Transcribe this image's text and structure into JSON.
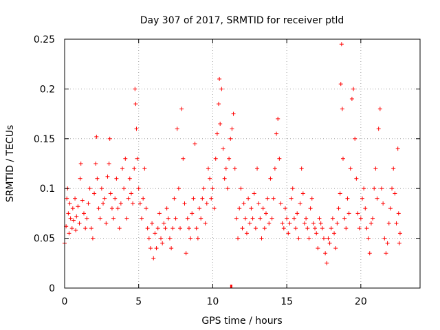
{
  "chart_data": {
    "type": "scatter",
    "title": "Day 307 of 2017, SRMTID for receiver ptld",
    "xlabel": "GPS time / hours",
    "ylabel": "SRMTID / TECUs",
    "xlim": [
      0,
      24
    ],
    "ylim": [
      0,
      0.25
    ],
    "xticks": [
      0,
      5,
      10,
      15,
      20
    ],
    "xtick_labels": [
      "0",
      "5",
      "10",
      "15",
      "20"
    ],
    "yticks": [
      0,
      0.05,
      0.1,
      0.15,
      0.2,
      0.25
    ],
    "ytick_labels": [
      "0",
      "0.05",
      "0.1",
      "0.15",
      "0.2",
      "0.25"
    ],
    "grid": true,
    "marker": "+",
    "color": "#ff0000",
    "series": [
      {
        "name": "SRMTID",
        "points": [
          [
            0.0,
            0.045
          ],
          [
            0.1,
            0.062
          ],
          [
            0.15,
            0.09
          ],
          [
            0.2,
            0.1
          ],
          [
            0.25,
            0.075
          ],
          [
            0.3,
            0.055
          ],
          [
            0.35,
            0.085
          ],
          [
            0.4,
            0.07
          ],
          [
            0.5,
            0.06
          ],
          [
            0.55,
            0.08
          ],
          [
            0.6,
            0.068
          ],
          [
            0.7,
            0.09
          ],
          [
            0.75,
            0.058
          ],
          [
            0.8,
            0.072
          ],
          [
            0.9,
            0.082
          ],
          [
            1.0,
            0.065
          ],
          [
            1.05,
            0.11
          ],
          [
            1.1,
            0.125
          ],
          [
            1.2,
            0.088
          ],
          [
            1.3,
            0.075
          ],
          [
            1.4,
            0.06
          ],
          [
            1.5,
            0.07
          ],
          [
            1.6,
            0.085
          ],
          [
            1.7,
            0.1
          ],
          [
            1.8,
            0.06
          ],
          [
            1.9,
            0.05
          ],
          [
            2.0,
            0.095
          ],
          [
            2.1,
            0.125
          ],
          [
            2.15,
            0.152
          ],
          [
            2.2,
            0.11
          ],
          [
            2.3,
            0.08
          ],
          [
            2.4,
            0.07
          ],
          [
            2.5,
            0.1
          ],
          [
            2.6,
            0.085
          ],
          [
            2.7,
            0.09
          ],
          [
            2.8,
            0.065
          ],
          [
            2.9,
            0.112
          ],
          [
            3.0,
            0.125
          ],
          [
            3.05,
            0.15
          ],
          [
            3.1,
            0.095
          ],
          [
            3.2,
            0.08
          ],
          [
            3.3,
            0.07
          ],
          [
            3.4,
            0.09
          ],
          [
            3.5,
            0.11
          ],
          [
            3.6,
            0.08
          ],
          [
            3.7,
            0.06
          ],
          [
            3.8,
            0.085
          ],
          [
            3.9,
            0.12
          ],
          [
            4.0,
            0.1
          ],
          [
            4.1,
            0.13
          ],
          [
            4.2,
            0.07
          ],
          [
            4.3,
            0.09
          ],
          [
            4.4,
            0.11
          ],
          [
            4.5,
            0.095
          ],
          [
            4.6,
            0.085
          ],
          [
            4.7,
            0.12
          ],
          [
            4.75,
            0.2
          ],
          [
            4.8,
            0.185
          ],
          [
            4.85,
            0.16
          ],
          [
            4.9,
            0.13
          ],
          [
            5.0,
            0.1
          ],
          [
            5.1,
            0.085
          ],
          [
            5.2,
            0.07
          ],
          [
            5.3,
            0.09
          ],
          [
            5.4,
            0.12
          ],
          [
            5.5,
            0.08
          ],
          [
            5.6,
            0.06
          ],
          [
            5.7,
            0.05
          ],
          [
            5.8,
            0.04
          ],
          [
            5.9,
            0.065
          ],
          [
            6.0,
            0.03
          ],
          [
            6.1,
            0.055
          ],
          [
            6.2,
            0.04
          ],
          [
            6.3,
            0.06
          ],
          [
            6.4,
            0.075
          ],
          [
            6.5,
            0.05
          ],
          [
            6.6,
            0.045
          ],
          [
            6.7,
            0.065
          ],
          [
            6.8,
            0.06
          ],
          [
            6.9,
            0.08
          ],
          [
            7.0,
            0.07
          ],
          [
            7.1,
            0.05
          ],
          [
            7.2,
            0.04
          ],
          [
            7.3,
            0.06
          ],
          [
            7.4,
            0.09
          ],
          [
            7.5,
            0.07
          ],
          [
            7.6,
            0.16
          ],
          [
            7.7,
            0.1
          ],
          [
            7.8,
            0.06
          ],
          [
            7.9,
            0.18
          ],
          [
            8.0,
            0.13
          ],
          [
            8.1,
            0.085
          ],
          [
            8.2,
            0.035
          ],
          [
            8.3,
            0.07
          ],
          [
            8.4,
            0.06
          ],
          [
            8.5,
            0.05
          ],
          [
            8.6,
            0.075
          ],
          [
            8.7,
            0.09
          ],
          [
            8.8,
            0.145
          ],
          [
            8.9,
            0.06
          ],
          [
            9.0,
            0.05
          ],
          [
            9.1,
            0.08
          ],
          [
            9.2,
            0.07
          ],
          [
            9.3,
            0.09
          ],
          [
            9.4,
            0.1
          ],
          [
            9.5,
            0.065
          ],
          [
            9.6,
            0.085
          ],
          [
            9.7,
            0.12
          ],
          [
            9.8,
            0.11
          ],
          [
            9.9,
            0.09
          ],
          [
            10.0,
            0.1
          ],
          [
            10.1,
            0.08
          ],
          [
            10.2,
            0.13
          ],
          [
            10.3,
            0.155
          ],
          [
            10.4,
            0.185
          ],
          [
            10.45,
            0.21
          ],
          [
            10.5,
            0.165
          ],
          [
            10.6,
            0.2
          ],
          [
            10.7,
            0.14
          ],
          [
            10.8,
            0.11
          ],
          [
            10.9,
            0.12
          ],
          [
            11.0,
            0.1
          ],
          [
            11.1,
            0.13
          ],
          [
            11.2,
            0.15
          ],
          [
            11.3,
            0.16
          ],
          [
            11.4,
            0.175
          ],
          [
            11.5,
            0.12
          ],
          [
            11.6,
            0.07
          ],
          [
            11.7,
            0.05
          ],
          [
            11.8,
            0.08
          ],
          [
            11.9,
            0.1
          ],
          [
            12.0,
            0.06
          ],
          [
            12.1,
            0.085
          ],
          [
            12.2,
            0.07
          ],
          [
            12.3,
            0.055
          ],
          [
            12.4,
            0.09
          ],
          [
            12.5,
            0.065
          ],
          [
            12.6,
            0.08
          ],
          [
            12.7,
            0.07
          ],
          [
            12.8,
            0.095
          ],
          [
            12.9,
            0.06
          ],
          [
            13.0,
            0.12
          ],
          [
            13.1,
            0.085
          ],
          [
            13.2,
            0.07
          ],
          [
            13.3,
            0.05
          ],
          [
            13.4,
            0.08
          ],
          [
            13.5,
            0.06
          ],
          [
            13.6,
            0.075
          ],
          [
            13.7,
            0.09
          ],
          [
            13.8,
            0.065
          ],
          [
            13.9,
            0.11
          ],
          [
            14.0,
            0.07
          ],
          [
            14.1,
            0.09
          ],
          [
            14.2,
            0.12
          ],
          [
            14.3,
            0.155
          ],
          [
            14.4,
            0.17
          ],
          [
            14.5,
            0.13
          ],
          [
            14.6,
            0.085
          ],
          [
            14.7,
            0.065
          ],
          [
            14.8,
            0.06
          ],
          [
            14.9,
            0.08
          ],
          [
            15.0,
            0.07
          ],
          [
            15.1,
            0.055
          ],
          [
            15.2,
            0.065
          ],
          [
            15.3,
            0.09
          ],
          [
            15.4,
            0.1
          ],
          [
            15.5,
            0.07
          ],
          [
            15.6,
            0.06
          ],
          [
            15.7,
            0.075
          ],
          [
            15.8,
            0.05
          ],
          [
            15.9,
            0.085
          ],
          [
            16.0,
            0.12
          ],
          [
            16.1,
            0.095
          ],
          [
            16.2,
            0.065
          ],
          [
            16.3,
            0.07
          ],
          [
            16.4,
            0.06
          ],
          [
            16.5,
            0.05
          ],
          [
            16.6,
            0.08
          ],
          [
            16.7,
            0.09
          ],
          [
            16.8,
            0.065
          ],
          [
            16.9,
            0.06
          ],
          [
            17.0,
            0.055
          ],
          [
            17.1,
            0.04
          ],
          [
            17.2,
            0.07
          ],
          [
            17.3,
            0.065
          ],
          [
            17.4,
            0.06
          ],
          [
            17.5,
            0.05
          ],
          [
            17.6,
            0.035
          ],
          [
            17.7,
            0.025
          ],
          [
            17.8,
            0.05
          ],
          [
            17.9,
            0.045
          ],
          [
            18.0,
            0.06
          ],
          [
            18.1,
            0.07
          ],
          [
            18.2,
            0.055
          ],
          [
            18.3,
            0.04
          ],
          [
            18.4,
            0.065
          ],
          [
            18.5,
            0.08
          ],
          [
            18.6,
            0.095
          ],
          [
            18.65,
            0.205
          ],
          [
            18.7,
            0.245
          ],
          [
            18.75,
            0.18
          ],
          [
            18.8,
            0.13
          ],
          [
            18.9,
            0.07
          ],
          [
            19.0,
            0.06
          ],
          [
            19.1,
            0.09
          ],
          [
            19.2,
            0.075
          ],
          [
            19.3,
            0.12
          ],
          [
            19.4,
            0.19
          ],
          [
            19.5,
            0.2
          ],
          [
            19.6,
            0.15
          ],
          [
            19.7,
            0.11
          ],
          [
            19.8,
            0.075
          ],
          [
            19.9,
            0.06
          ],
          [
            20.0,
            0.07
          ],
          [
            20.1,
            0.09
          ],
          [
            20.2,
            0.1
          ],
          [
            20.3,
            0.08
          ],
          [
            20.4,
            0.06
          ],
          [
            20.5,
            0.05
          ],
          [
            20.6,
            0.035
          ],
          [
            20.7,
            0.065
          ],
          [
            20.8,
            0.07
          ],
          [
            20.9,
            0.1
          ],
          [
            21.0,
            0.12
          ],
          [
            21.1,
            0.09
          ],
          [
            21.2,
            0.16
          ],
          [
            21.3,
            0.18
          ],
          [
            21.4,
            0.1
          ],
          [
            21.5,
            0.085
          ],
          [
            21.6,
            0.05
          ],
          [
            21.7,
            0.035
          ],
          [
            21.8,
            0.045
          ],
          [
            21.9,
            0.065
          ],
          [
            22.0,
            0.08
          ],
          [
            22.1,
            0.1
          ],
          [
            22.2,
            0.12
          ],
          [
            22.3,
            0.095
          ],
          [
            22.4,
            0.065
          ],
          [
            22.5,
            0.14
          ],
          [
            22.55,
            0.075
          ],
          [
            22.6,
            0.045
          ],
          [
            22.65,
            0.055
          ]
        ],
        "zero_points": [
          [
            11.25,
            0.0
          ]
        ]
      }
    ]
  }
}
